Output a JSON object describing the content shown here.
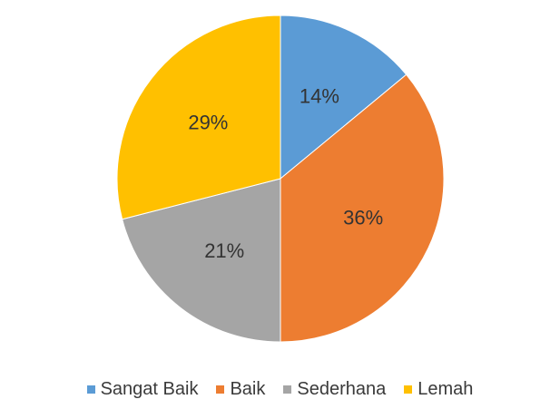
{
  "chart_data": {
    "type": "pie",
    "categories": [
      "Sangat Baik",
      "Baik",
      "Sederhana",
      "Lemah"
    ],
    "values": [
      14,
      36,
      21,
      29
    ],
    "labels": [
      "14%",
      "36%",
      "21%",
      "29%"
    ],
    "colors": [
      "#5b9bd5",
      "#ed7d31",
      "#a5a5a5",
      "#ffc000"
    ],
    "legend_position": "bottom",
    "start_angle": "top",
    "direction": "clockwise"
  }
}
